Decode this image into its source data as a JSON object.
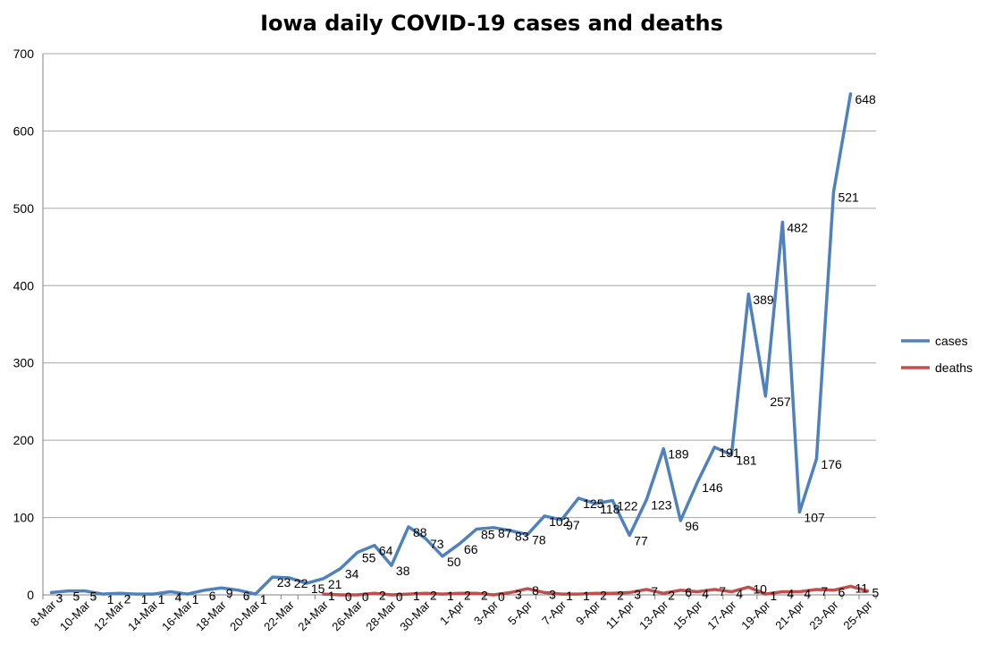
{
  "chart_data": {
    "type": "line",
    "title": "Iowa daily COVID-19 cases and deaths",
    "xlabel": "",
    "ylabel": "",
    "ylim": [
      0,
      700
    ],
    "yticks": [
      0,
      100,
      200,
      300,
      400,
      500,
      600,
      700
    ],
    "grid": true,
    "legend_position": "right",
    "categories": [
      "8-Mar",
      "9-Mar",
      "10-Mar",
      "11-Mar",
      "12-Mar",
      "13-Mar",
      "14-Mar",
      "15-Mar",
      "16-Mar",
      "17-Mar",
      "18-Mar",
      "19-Mar",
      "20-Mar",
      "21-Mar",
      "22-Mar",
      "23-Mar",
      "24-Mar",
      "25-Mar",
      "26-Mar",
      "27-Mar",
      "28-Mar",
      "29-Mar",
      "30-Mar",
      "31-Mar",
      "1-Apr",
      "2-Apr",
      "3-Apr",
      "4-Apr",
      "5-Apr",
      "6-Apr",
      "7-Apr",
      "8-Apr",
      "9-Apr",
      "10-Apr",
      "11-Apr",
      "12-Apr",
      "13-Apr",
      "14-Apr",
      "15-Apr",
      "16-Apr",
      "17-Apr",
      "18-Apr",
      "19-Apr",
      "20-Apr",
      "21-Apr",
      "22-Apr",
      "23-Apr",
      "24-Apr",
      "25-Apr"
    ],
    "xtick_labels": [
      "8-Mar",
      "10-Mar",
      "12-Mar",
      "14-Mar",
      "16-Mar",
      "18-Mar",
      "20-Mar",
      "22-Mar",
      "24-Mar",
      "26-Mar",
      "28-Mar",
      "30-Mar",
      "1-Apr",
      "3-Apr",
      "5-Apr",
      "7-Apr",
      "9-Apr",
      "11-Apr",
      "13-Apr",
      "15-Apr",
      "17-Apr",
      "19-Apr",
      "21-Apr",
      "23-Apr",
      "25-Apr"
    ],
    "series": [
      {
        "name": "cases",
        "color": "#4F81BD",
        "values": [
          3,
          5,
          5,
          1,
          2,
          1,
          1,
          4,
          1,
          6,
          9,
          6,
          1,
          23,
          22,
          15,
          21,
          34,
          55,
          64,
          38,
          88,
          73,
          50,
          66,
          85,
          87,
          83,
          78,
          102,
          97,
          125,
          118,
          122,
          77,
          123,
          189,
          96,
          146,
          191,
          181,
          389,
          257,
          482,
          107,
          176,
          521,
          648,
          null
        ]
      },
      {
        "name": "deaths",
        "color": "#C0504D",
        "values": [
          null,
          null,
          null,
          null,
          null,
          null,
          null,
          null,
          null,
          null,
          null,
          null,
          null,
          null,
          null,
          null,
          1,
          0,
          0,
          2,
          0,
          1,
          2,
          1,
          2,
          2,
          0,
          3,
          8,
          3,
          1,
          1,
          2,
          2,
          3,
          7,
          2,
          6,
          4,
          7,
          4,
          10,
          1,
          4,
          4,
          7,
          6,
          11,
          5
        ]
      }
    ]
  }
}
